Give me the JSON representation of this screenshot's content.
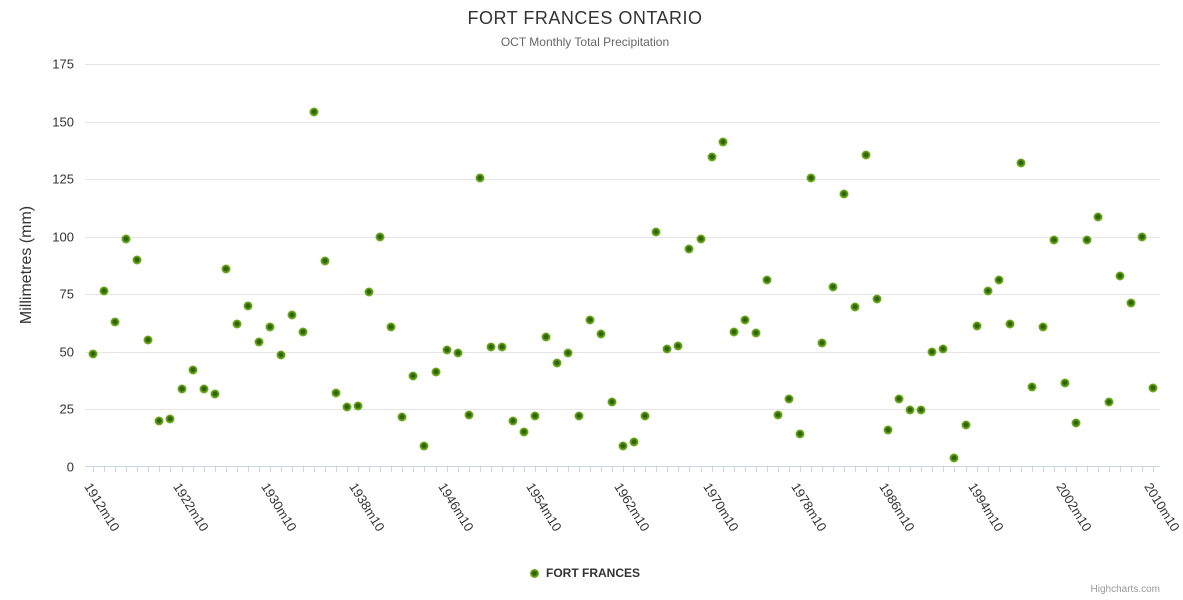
{
  "title": "FORT FRANCES ONTARIO",
  "subtitle": "OCT Monthly Total Precipitation",
  "legend": {
    "label": "FORT FRANCES"
  },
  "credit": "Highcharts.com",
  "colors": {
    "point_outer": "#77b72c",
    "point_mid": "#5d9b14",
    "point_inner": "#2f6106",
    "grid": "#e6e6e6",
    "axis_line": "#ccd6eb",
    "title": "#333333",
    "subtitle": "#666666",
    "tick_label": "#333333",
    "credit": "#999999"
  },
  "chart_data": {
    "type": "scatter",
    "title": "FORT FRANCES ONTARIO",
    "subtitle": "OCT Monthly Total Precipitation",
    "xlabel": "",
    "ylabel": "Millimetres (mm)",
    "ylim": [
      0,
      175
    ],
    "ytick_labels": [
      "0",
      "25",
      "50",
      "75",
      "100",
      "125",
      "150",
      "175"
    ],
    "xtick_labels": [
      "1912m10",
      "1922m10",
      "1930m10",
      "1938m10",
      "1946m10",
      "1954m10",
      "1962m10",
      "1970m10",
      "1978m10",
      "1986m10",
      "1994m10",
      "2002m10",
      "2010m10"
    ],
    "xlabel_every_n_categories": 8,
    "grid": true,
    "legend_position": "bottom",
    "series": [
      {
        "name": "FORT FRANCES",
        "color": "#77b72c",
        "points": [
          [
            1912,
            49
          ],
          [
            1913,
            76.5
          ],
          [
            1914,
            63
          ],
          [
            1915,
            99
          ],
          [
            1916,
            90
          ],
          [
            1917,
            55
          ],
          [
            1918,
            20
          ],
          [
            1919,
            20.5
          ],
          [
            1922,
            33.5
          ],
          [
            1923,
            42
          ],
          [
            1924,
            33.5
          ],
          [
            1925,
            31.5
          ],
          [
            1926,
            86
          ],
          [
            1927,
            62
          ],
          [
            1928,
            70
          ],
          [
            1929,
            54
          ],
          [
            1930,
            60.5
          ],
          [
            1931,
            48.5
          ],
          [
            1932,
            66
          ],
          [
            1933,
            58.5
          ],
          [
            1934,
            154
          ],
          [
            1935,
            89.5
          ],
          [
            1936,
            32
          ],
          [
            1937,
            26
          ],
          [
            1938,
            26.5
          ],
          [
            1939,
            76
          ],
          [
            1940,
            100
          ],
          [
            1941,
            60.5
          ],
          [
            1942,
            21.5
          ],
          [
            1943,
            39.5
          ],
          [
            1944,
            9
          ],
          [
            1945,
            41
          ],
          [
            1946,
            50.5
          ],
          [
            1947,
            49.5
          ],
          [
            1948,
            22.5
          ],
          [
            1949,
            125.5
          ],
          [
            1950,
            52
          ],
          [
            1951,
            52
          ],
          [
            1952,
            20
          ],
          [
            1953,
            15
          ],
          [
            1954,
            22
          ],
          [
            1955,
            56.5
          ],
          [
            1956,
            45
          ],
          [
            1957,
            49.5
          ],
          [
            1958,
            22
          ],
          [
            1959,
            63.5
          ],
          [
            1960,
            57.5
          ],
          [
            1961,
            28
          ],
          [
            1962,
            9
          ],
          [
            1963,
            10.5
          ],
          [
            1964,
            22
          ],
          [
            1965,
            102
          ],
          [
            1966,
            51
          ],
          [
            1967,
            52.5
          ],
          [
            1968,
            94.5
          ],
          [
            1969,
            99
          ],
          [
            1970,
            134.5
          ],
          [
            1971,
            141
          ],
          [
            1972,
            58.5
          ],
          [
            1973,
            63.5
          ],
          [
            1974,
            58
          ],
          [
            1975,
            81
          ],
          [
            1976,
            22.5
          ],
          [
            1977,
            29.5
          ],
          [
            1978,
            14
          ],
          [
            1979,
            125.5
          ],
          [
            1980,
            53.5
          ],
          [
            1981,
            78
          ],
          [
            1982,
            118.5
          ],
          [
            1983,
            69.5
          ],
          [
            1984,
            135.5
          ],
          [
            1985,
            73
          ],
          [
            1986,
            16
          ],
          [
            1987,
            29.5
          ],
          [
            1988,
            24.5
          ],
          [
            1989,
            24.5
          ],
          [
            1990,
            50
          ],
          [
            1991,
            51
          ],
          [
            1992,
            3.5
          ],
          [
            1993,
            18
          ],
          [
            1994,
            61
          ],
          [
            1995,
            76.5
          ],
          [
            1996,
            81
          ],
          [
            1997,
            62
          ],
          [
            1998,
            132
          ],
          [
            1999,
            34.5
          ],
          [
            2000,
            60.5
          ],
          [
            2001,
            98.5
          ],
          [
            2002,
            36.5
          ],
          [
            2003,
            19
          ],
          [
            2004,
            98.5
          ],
          [
            2005,
            108.5
          ],
          [
            2006,
            28
          ],
          [
            2007,
            83
          ],
          [
            2008,
            71
          ],
          [
            2009,
            100
          ],
          [
            2010,
            34
          ]
        ]
      }
    ]
  }
}
